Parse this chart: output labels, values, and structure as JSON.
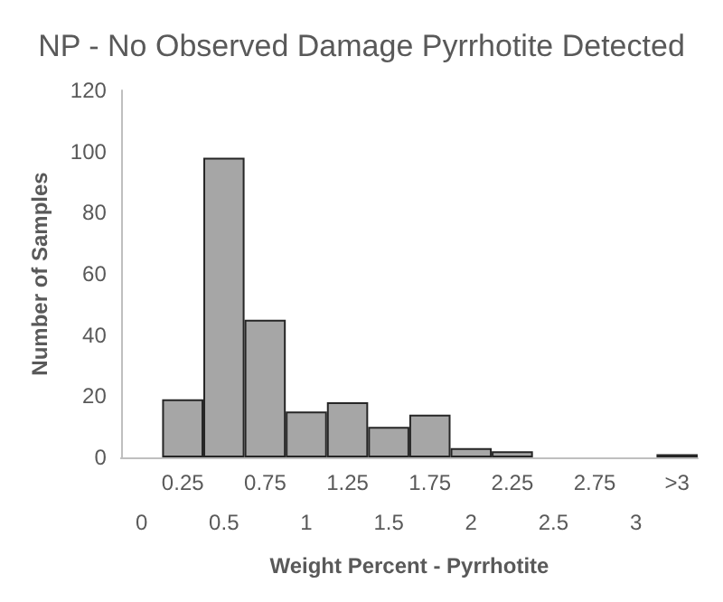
{
  "chart_data": {
    "type": "bar",
    "title": "NP - No Observed Damage Pyrrhotite Detected",
    "xlabel": "Weight Percent - Pyrrhotite",
    "ylabel": "Number of Samples",
    "categories": [
      "0",
      "0.25",
      "0.5",
      "0.75",
      "1",
      "1.25",
      "1.5",
      "1.75",
      "2",
      "2.25",
      "2.5",
      "2.75",
      "3",
      ">3"
    ],
    "values": [
      0,
      19,
      98,
      45,
      15,
      18,
      10,
      14,
      3,
      2,
      0,
      0,
      0,
      1
    ],
    "color": "#a6a6a6",
    "ylim": [
      0,
      120
    ],
    "yticks": [
      0,
      20,
      40,
      60,
      80,
      100,
      120
    ],
    "grid": false
  }
}
